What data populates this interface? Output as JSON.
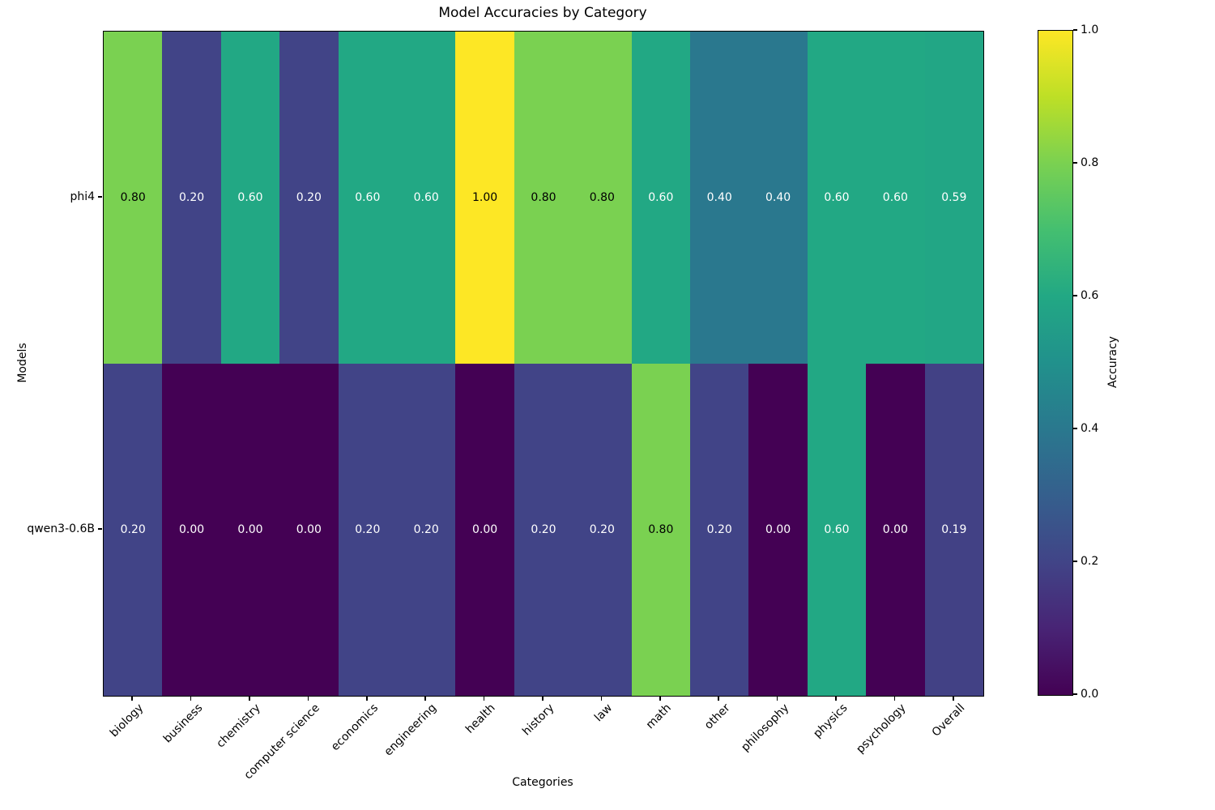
{
  "chart_data": {
    "type": "heatmap",
    "title": "Model Accuracies by Category",
    "xlabel": "Categories",
    "ylabel": "Models",
    "categories": [
      "biology",
      "business",
      "chemistry",
      "computer science",
      "economics",
      "engineering",
      "health",
      "history",
      "law",
      "math",
      "other",
      "philosophy",
      "physics",
      "psychology",
      "Overall"
    ],
    "rows": [
      "phi4",
      "qwen3-0.6B"
    ],
    "series": [
      {
        "name": "phi4",
        "values": [
          0.8,
          0.2,
          0.6,
          0.2,
          0.6,
          0.6,
          1.0,
          0.8,
          0.8,
          0.6,
          0.4,
          0.4,
          0.6,
          0.6,
          0.59
        ]
      },
      {
        "name": "qwen3-0.6B",
        "values": [
          0.2,
          0.0,
          0.0,
          0.0,
          0.2,
          0.2,
          0.0,
          0.2,
          0.2,
          0.8,
          0.2,
          0.0,
          0.6,
          0.0,
          0.19
        ]
      }
    ],
    "value_decimals": 2,
    "colormap": "viridis",
    "vmin": 0.0,
    "vmax": 1.0,
    "x_tick_rotation_deg": 45,
    "grid": "off",
    "colorbar": {
      "label": "Accuracy",
      "position": "right",
      "tick_labels": [
        "0.0",
        "0.2",
        "0.4",
        "0.6",
        "0.8",
        "1.0"
      ]
    }
  }
}
